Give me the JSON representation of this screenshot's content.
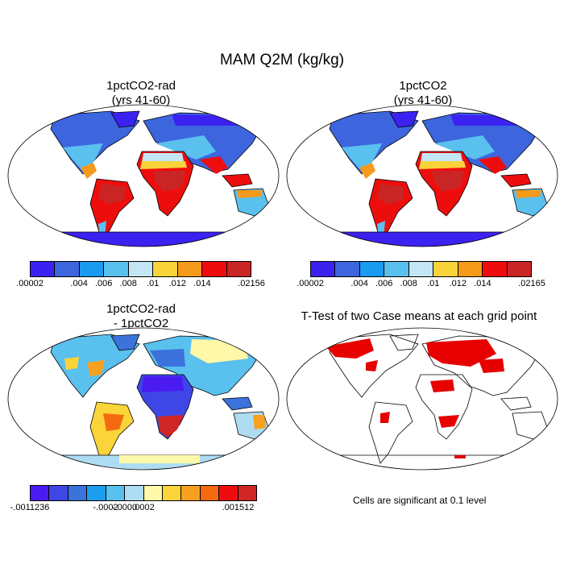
{
  "figure": {
    "title": "MAM Q2M (kg/kg)",
    "footnote": "Cells are significant at 0.1 level"
  },
  "panels": [
    {
      "id": "rad",
      "title_line1": "1pctCO2-rad",
      "title_line2": "(yrs 41-60)"
    },
    {
      "id": "ctl",
      "title_line1": "1pctCO2",
      "title_line2": "(yrs 41-60)"
    },
    {
      "id": "diff",
      "title_line1": "1pctCO2-rad",
      "title_line2": "- 1pctCO2"
    },
    {
      "id": "ttest",
      "title_line1": "T-Test of two Case means at each grid point",
      "title_line2": ""
    }
  ],
  "colorbars": [
    {
      "id": "rad",
      "colors": [
        "#3c22f0",
        "#3c65de",
        "#1a9bf0",
        "#5ac0ee",
        "#c3e5f4",
        "#f8d33a",
        "#f59a1a",
        "#ee0d0d",
        "#c92525"
      ],
      "labels": [
        ".00002",
        "",
        ".004",
        ".006",
        ".008",
        ".01",
        ".012",
        ".014",
        "",
        ".02156"
      ]
    },
    {
      "id": "ctl",
      "colors": [
        "#3c22f0",
        "#3c65de",
        "#1a9bf0",
        "#5ac0ee",
        "#c3e5f4",
        "#f8d33a",
        "#f59a1a",
        "#ee0d0d",
        "#c92525"
      ],
      "labels": [
        ".00002",
        "",
        ".004",
        ".006",
        ".008",
        ".01",
        ".012",
        ".014",
        "",
        ".02165"
      ]
    },
    {
      "id": "diff",
      "colors": [
        "#4a1cf2",
        "#3e47e6",
        "#3c72dc",
        "#1c9ef0",
        "#5ac0ee",
        "#aedcf2",
        "#fff8a8",
        "#fbd43a",
        "#f8a020",
        "#f56a10",
        "#ee0d0d",
        "#d02626"
      ],
      "labels": [
        "-.0011236",
        "",
        "",
        "",
        "-.0002",
        "-.0000",
        ".0002",
        "",
        "",
        "",
        "",
        ".001512"
      ]
    }
  ],
  "colors": {
    "ocean": "#ffffff",
    "coast": "#000000",
    "significant": "#e60000"
  }
}
